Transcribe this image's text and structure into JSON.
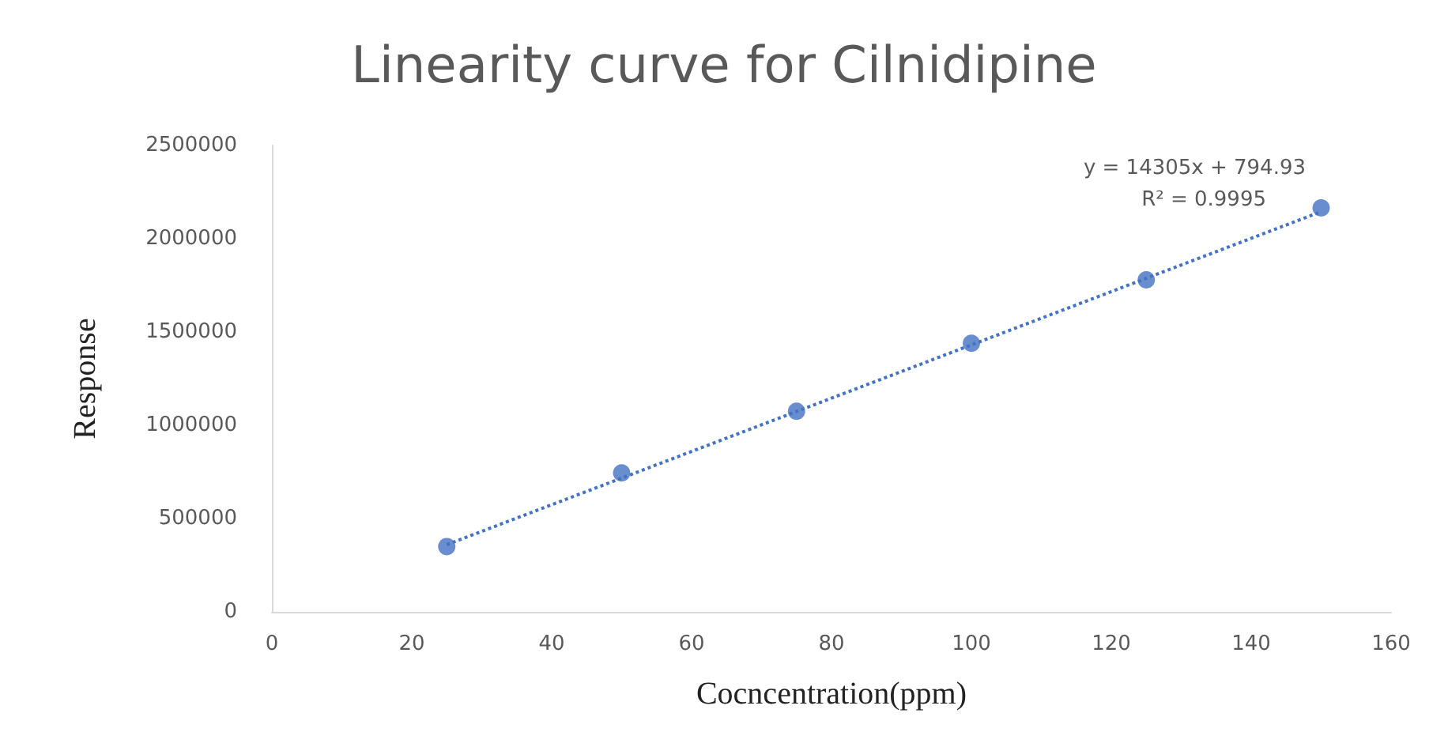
{
  "chart_data": {
    "type": "scatter",
    "title": "Linearity curve for Cilnidipine",
    "xlabel": "Cocncentration(ppm)",
    "ylabel": "Response",
    "series": [
      {
        "color": "#4472c4",
        "marker": "circle",
        "x": [
          25,
          50,
          75,
          100,
          125,
          150
        ],
        "values": [
          350000,
          745000,
          1075000,
          1440000,
          1780000,
          2165000
        ]
      },
      {
        "type": "line",
        "color": "#4472c4",
        "marker": "none",
        "line_style": "dotted",
        "x": [
          25,
          150
        ],
        "values": [
          360000,
          2145000
        ]
      }
    ],
    "annotations": [
      "y = 14305x + 794.93",
      "R² = 0.9995"
    ],
    "xlim": [
      0,
      160
    ],
    "xticks": [
      0,
      20,
      40,
      60,
      80,
      100,
      120,
      140,
      160
    ],
    "ylim": [
      0,
      2500000
    ],
    "yticks": [
      0,
      500000,
      1000000,
      1500000,
      2000000,
      2500000
    ],
    "grid": false
  }
}
